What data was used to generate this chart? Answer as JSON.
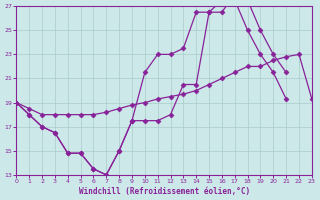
{
  "xlabel": "Windchill (Refroidissement éolien,°C)",
  "xlim": [
    0,
    23
  ],
  "ylim": [
    13,
    27
  ],
  "xticks": [
    0,
    1,
    2,
    3,
    4,
    5,
    6,
    7,
    8,
    9,
    10,
    11,
    12,
    13,
    14,
    15,
    16,
    17,
    18,
    19,
    20,
    21,
    22,
    23
  ],
  "yticks": [
    13,
    15,
    17,
    19,
    21,
    23,
    25,
    27
  ],
  "background_color": "#cde8e8",
  "grid_color": "#aacccc",
  "line_color": "#882299",
  "lineA_x": [
    0,
    1,
    2,
    3,
    4,
    5,
    6,
    7,
    8,
    9,
    10,
    11,
    12,
    13,
    14,
    15,
    16,
    17,
    18,
    19,
    20,
    21
  ],
  "lineA_y": [
    19,
    18,
    17,
    16.5,
    14.8,
    14.8,
    13.5,
    13,
    15,
    17.5,
    17.5,
    17.5,
    18,
    20.5,
    20.5,
    26.5,
    26.5,
    28,
    27.5,
    25,
    23,
    21.5
  ],
  "lineB_x": [
    0,
    1,
    2,
    3,
    4,
    5,
    6,
    7,
    8,
    9,
    10,
    11,
    12,
    13,
    14,
    15,
    16,
    17,
    18,
    19,
    20,
    21
  ],
  "lineB_y": [
    19,
    18,
    17,
    16.5,
    14.8,
    14.8,
    13.5,
    13,
    15,
    17.5,
    21.5,
    23,
    23,
    23.5,
    26.5,
    26.5,
    27.5,
    27.5,
    25,
    23,
    21.5,
    19.3
  ],
  "lineC_x": [
    0,
    1,
    2,
    3,
    4,
    5,
    6,
    7,
    8,
    9,
    10,
    11,
    12,
    13,
    14,
    15,
    16,
    17,
    18,
    19,
    20,
    21,
    22,
    23
  ],
  "lineC_y": [
    19,
    18.5,
    18,
    18,
    18,
    18,
    18,
    18.2,
    18.5,
    18.8,
    19,
    19.3,
    19.5,
    19.7,
    20,
    20.5,
    21,
    21.5,
    22,
    22,
    22.5,
    22.8,
    23,
    19.3
  ]
}
